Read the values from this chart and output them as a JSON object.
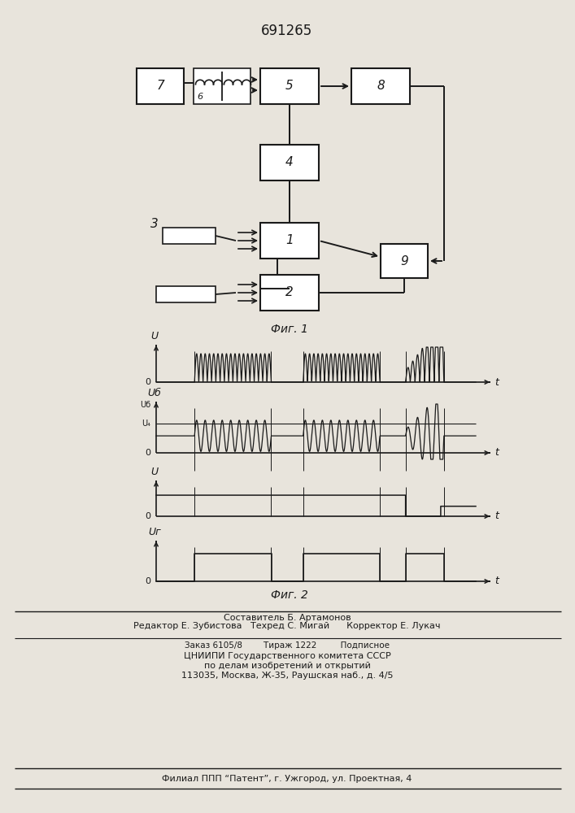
{
  "title": "691265",
  "fig1_label": "Фиг. 1",
  "fig2_label": "Фиг. 2",
  "bg_color": "#e8e4dc",
  "line_color": "#1a1a1a",
  "footer_lines": [
    "Составитель Б. Артамонов",
    "Редактор Е. Зубистова   Техред С. Мигай      Корректор Е. Лукач",
    "Заказ 6105/8        Тираж 1222         Подписное",
    "ЦНИИПИ Государственного комитета СССР",
    "по делам изобретений и открытий",
    "113035, Москва, Ж-35, Раушская наб., д. 4/5",
    "Филиал ППП “Патент”, г. Ужгород, ул. Проектная, 4"
  ]
}
